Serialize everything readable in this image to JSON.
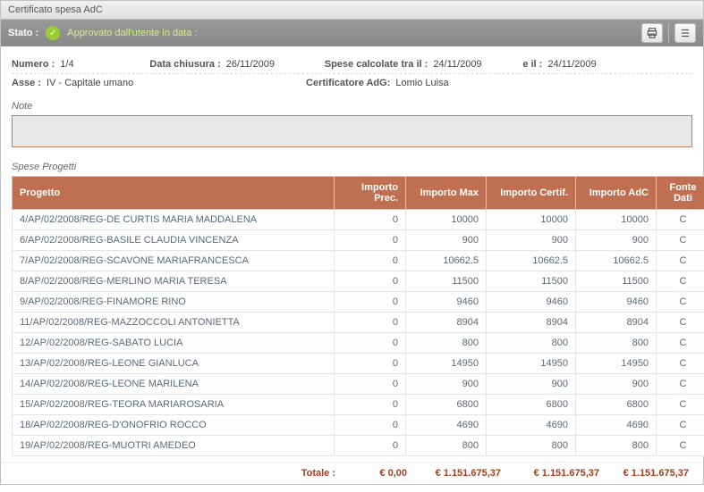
{
  "window": {
    "title": "Certificato spesa AdC"
  },
  "status": {
    "label": "Stato :",
    "text": "Approvato dall'utente  in data :"
  },
  "meta": {
    "numero_label": "Numero :",
    "numero": "1/4",
    "data_chiusura_label": "Data chiusura :",
    "data_chiusura": "26/11/2009",
    "spese_tra_label": "Spese calcolate tra il :",
    "data_da": "24/11/2009",
    "e_il_label": "e il :",
    "data_a": "24/11/2009",
    "asse_label": "Asse :",
    "asse": "IV - Capitale umano",
    "certificatore_label": "Certificatore  AdG:",
    "certificatore": "Lomio Luisa"
  },
  "note": {
    "label": "Note",
    "value": ""
  },
  "table": {
    "title": "Spese Progetti",
    "columns": {
      "progetto": "Progetto",
      "importo_prec": "Importo Prec.",
      "importo_max": "Importo Max",
      "importo_certif": "Importo Certif.",
      "importo_adc": "Importo AdC",
      "fonte_dati": "Fonte Dati"
    },
    "col_widths": {
      "progetto": 360,
      "importo_prec": 80,
      "importo_max": 90,
      "importo_certif": 100,
      "importo_adc": 90,
      "fonte_dati": 60
    },
    "header_bg": "#c07050",
    "header_fg": "#ffffff",
    "rows": [
      {
        "progetto": "4/AP/02/2008/REG-DE CURTIS MARIA MADDALENA",
        "prec": "0",
        "max": "10000",
        "certif": "10000",
        "adc": "10000",
        "fonte": "C"
      },
      {
        "progetto": "6/AP/02/2008/REG-BASILE CLAUDIA VINCENZA",
        "prec": "0",
        "max": "900",
        "certif": "900",
        "adc": "900",
        "fonte": "C"
      },
      {
        "progetto": "7/AP/02/2008/REG-SCAVONE MARIAFRANCESCA",
        "prec": "0",
        "max": "10662.5",
        "certif": "10662.5",
        "adc": "10662.5",
        "fonte": "C"
      },
      {
        "progetto": "8/AP/02/2008/REG-MERLINO MARIA TERESA",
        "prec": "0",
        "max": "11500",
        "certif": "11500",
        "adc": "11500",
        "fonte": "C"
      },
      {
        "progetto": "9/AP/02/2008/REG-FINAMORE RINO",
        "prec": "0",
        "max": "9460",
        "certif": "9460",
        "adc": "9460",
        "fonte": "C"
      },
      {
        "progetto": "11/AP/02/2008/REG-MAZZOCCOLI ANTONIETTA",
        "prec": "0",
        "max": "8904",
        "certif": "8904",
        "adc": "8904",
        "fonte": "C"
      },
      {
        "progetto": "12/AP/02/2008/REG-SABATO LUCIA",
        "prec": "0",
        "max": "800",
        "certif": "800",
        "adc": "800",
        "fonte": "C"
      },
      {
        "progetto": "13/AP/02/2008/REG-LEONE GIANLUCA",
        "prec": "0",
        "max": "14950",
        "certif": "14950",
        "adc": "14950",
        "fonte": "C"
      },
      {
        "progetto": "14/AP/02/2008/REG-LEONE MARILENA",
        "prec": "0",
        "max": "900",
        "certif": "900",
        "adc": "900",
        "fonte": "C"
      },
      {
        "progetto": "15/AP/02/2008/REG-TEORA MARIAROSARIA",
        "prec": "0",
        "max": "6800",
        "certif": "6800",
        "adc": "6800",
        "fonte": "C"
      },
      {
        "progetto": "18/AP/02/2008/REG-D'ONOFRIO ROCCO",
        "prec": "0",
        "max": "4690",
        "certif": "4690",
        "adc": "4690",
        "fonte": "C"
      },
      {
        "progetto": "19/AP/02/2008/REG-MUOTRI AMEDEO",
        "prec": "0",
        "max": "800",
        "certif": "800",
        "adc": "800",
        "fonte": "C"
      }
    ]
  },
  "totals": {
    "label": "Totale :",
    "prec": "€ 0,00",
    "max": "€ 1.151.675,37",
    "certif": "€ 1.151.675,37",
    "adc": "€ 1.151.675,37",
    "color": "#a04020"
  }
}
